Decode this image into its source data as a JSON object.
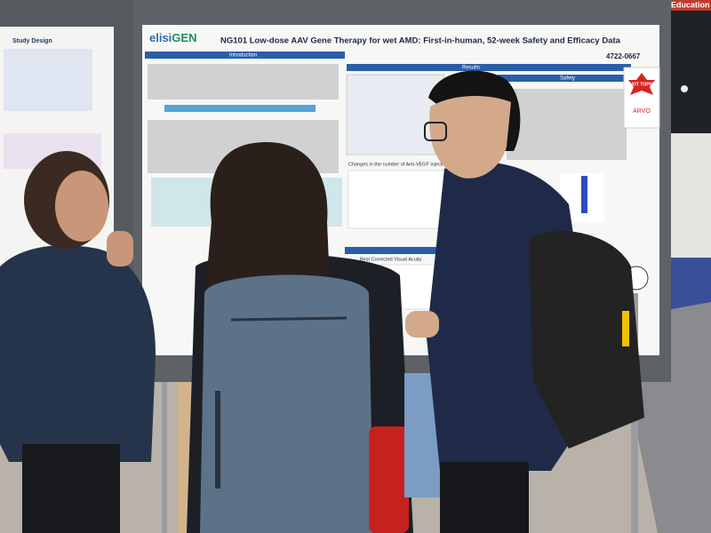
{
  "scene": {
    "sign": "Education",
    "left_poster": {
      "heading": "Study Design"
    },
    "poster": {
      "logo_prefix": "elisi",
      "logo_suffix": "GEN",
      "title": "NG101 Low-dose AAV Gene Therapy for wet AMD: First-in-human, 52-week Safety and Efficacy Data",
      "poster_id": "4722-0667",
      "sections": [
        "Introduction",
        "Results",
        "Safety"
      ],
      "chart_heading": "Changes in the number of Anti-VEGF injections",
      "bcva_heading": "Best Corrected Visual Acuity",
      "badge": "HOT TOPIC",
      "badge_org": "ARVO"
    }
  }
}
